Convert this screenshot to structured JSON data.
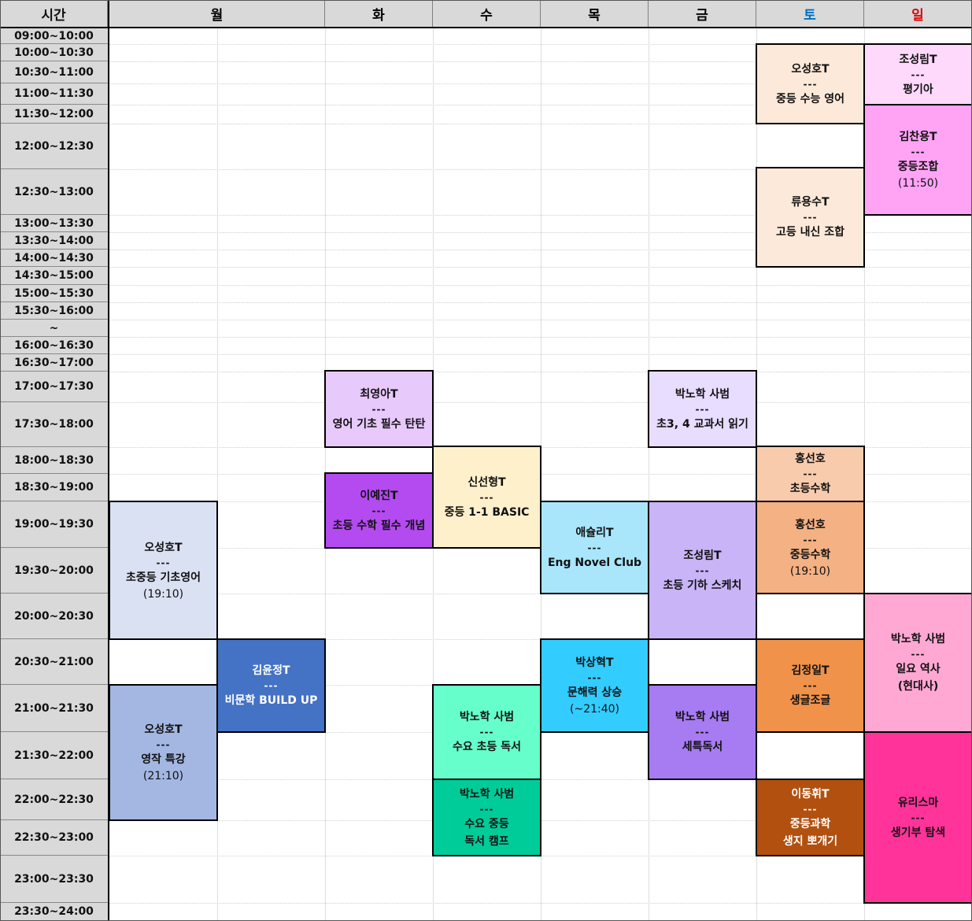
{
  "header": {
    "time_label": "시간",
    "days": [
      {
        "label": "월",
        "color": "#000000"
      },
      {
        "label": "화",
        "color": "#000000"
      },
      {
        "label": "수",
        "color": "#000000"
      },
      {
        "label": "목",
        "color": "#000000"
      },
      {
        "label": "금",
        "color": "#000000"
      },
      {
        "label": "토",
        "color": "#0070c0"
      },
      {
        "label": "일",
        "color": "#e00000"
      }
    ]
  },
  "time_slots": [
    "09:00~10:00",
    "10:00~10:30",
    "10:30~11:00",
    "11:00~11:30",
    "11:30~12:00",
    "12:00~12:30",
    "12:30~13:00",
    "13:00~13:30",
    "13:30~14:00",
    "14:00~14:30",
    "14:30~15:00",
    "15:00~15:30",
    "15:30~16:00",
    "~",
    "16:00~16:30",
    "16:30~17:00",
    "17:00~17:30",
    "17:30~18:00",
    "18:00~18:30",
    "18:30~19:00",
    "19:00~19:30",
    "19:30~20:00",
    "20:00~20:30",
    "20:30~21:00",
    "21:00~21:30",
    "21:30~22:00",
    "22:00~22:30",
    "22:30~23:00",
    "23:00~23:30",
    "23:30~24:00"
  ],
  "separator": "---",
  "classes": [
    {
      "teacher": "오성호T",
      "title": "중등 수능 영어",
      "color": "#fde9d9"
    },
    {
      "teacher": "조성림T",
      "title": "평기아",
      "color": "#ffd9fb"
    },
    {
      "teacher": "김찬용T",
      "title": "중등조합",
      "note": "(11:50)",
      "color": "#ffa3f5"
    },
    {
      "teacher": "류용수T",
      "title": "고등 내신 조합",
      "color": "#fde9d9"
    },
    {
      "teacher": "최영아T",
      "title": "영어 기초 필수 탄탄",
      "color": "#e8c9fc"
    },
    {
      "teacher": "박노학 사범",
      "title": "초3, 4 교과서 읽기",
      "color": "#e8dcff"
    },
    {
      "teacher": "신선형T",
      "title": "중등 1-1 BASIC",
      "color": "#fff0cc"
    },
    {
      "teacher": "홍선호",
      "title": "초등수학",
      "color": "#f8cbad"
    },
    {
      "teacher": "이예진T",
      "title": "초등 수학 필수 개념",
      "color": "#b44bf0"
    },
    {
      "teacher": "오성호T",
      "title": "초중등 기초영어",
      "note": "(19:10)",
      "color": "#dae1f3"
    },
    {
      "teacher": "애슐리T",
      "title": "Eng Novel Club",
      "color": "#a9e6fb"
    },
    {
      "teacher": "조성림T",
      "title": "초등 기하 스케치",
      "color": "#c9b4f7"
    },
    {
      "teacher": "홍선호",
      "title": "중등수학",
      "note": "(19:10)",
      "color": "#f4b183"
    },
    {
      "teacher": "박노학 사범",
      "title": "일요 역사",
      "title2": "(현대사)",
      "color": "#ffa8d4"
    },
    {
      "teacher": "김윤정T",
      "title": "비문학 BUILD UP",
      "color": "#4472c4"
    },
    {
      "teacher": "박상혁T",
      "title": "문해력 상승",
      "note": "(~21:40)",
      "color": "#33ccff"
    },
    {
      "teacher": "김정일T",
      "title": "생글조글",
      "color": "#f0924a"
    },
    {
      "teacher": "오성호T",
      "title": "영작 특강",
      "note": "(21:10)",
      "color": "#a3b7e2"
    },
    {
      "teacher": "박노학 사범",
      "title": "수요 초등 독서",
      "color": "#66ffcc"
    },
    {
      "teacher": "박노학 사범",
      "title": "세특독서",
      "color": "#a77bf2"
    },
    {
      "teacher": "유리스마",
      "title": "생기부 탐색",
      "color": "#ff3399"
    },
    {
      "teacher": "박노학 사범",
      "title": "수요 중등",
      "title2": "독서 캠프",
      "color": "#00cc99"
    },
    {
      "teacher": "이동휘T",
      "title": "중등과학",
      "title2": "생지 뽀개기",
      "color": "#b1500f"
    }
  ]
}
